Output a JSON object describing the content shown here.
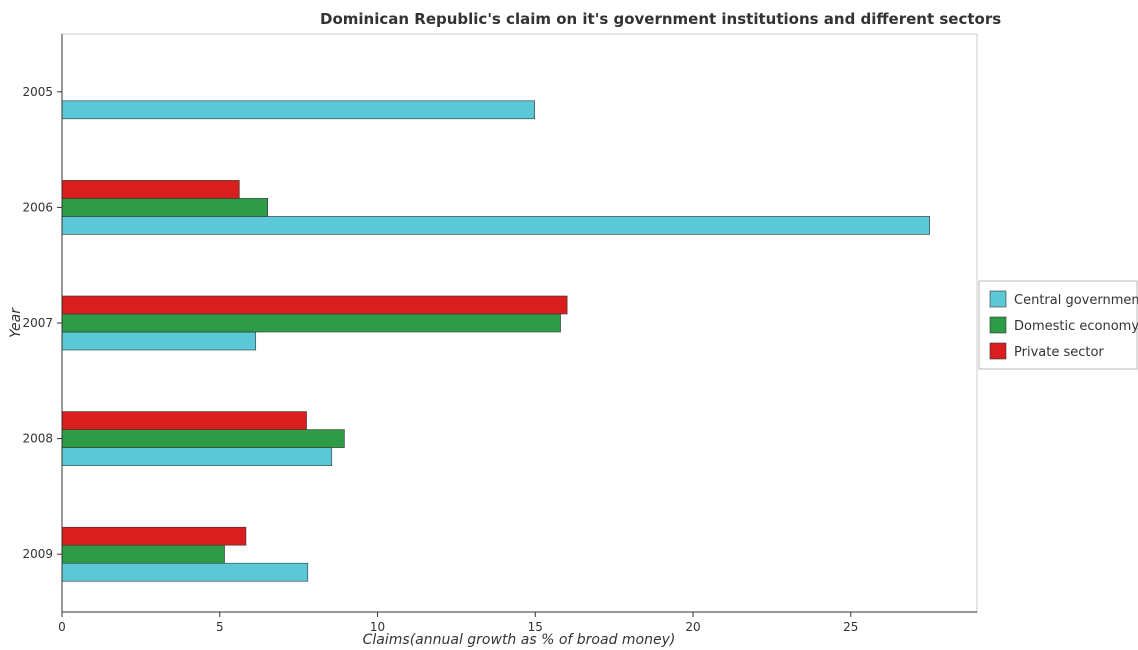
{
  "chart_data": {
    "type": "bar",
    "orientation": "horizontal",
    "title": "Dominican Republic's claim on it's government institutions and different sectors",
    "xlabel": "Claims(annual growth as % of broad money)",
    "ylabel": "Year",
    "categories": [
      "2005",
      "2006",
      "2007",
      "2008",
      "2009"
    ],
    "series": [
      {
        "name": "Central government",
        "color": "#5bc8d8",
        "values": [
          14.98,
          27.5,
          6.14,
          8.55,
          7.79
        ]
      },
      {
        "name": "Domestic economy",
        "color": "#2e9b48",
        "values": [
          0,
          6.52,
          15.8,
          8.95,
          5.15
        ]
      },
      {
        "name": "Private sector",
        "color": "#d91e1e",
        "values": [
          0,
          5.62,
          16.01,
          7.75,
          5.83
        ]
      }
    ],
    "xlim": [
      0,
      29
    ],
    "xticks": [
      0,
      5,
      10,
      15,
      20,
      25
    ],
    "grid": false,
    "legend_position": "right"
  }
}
